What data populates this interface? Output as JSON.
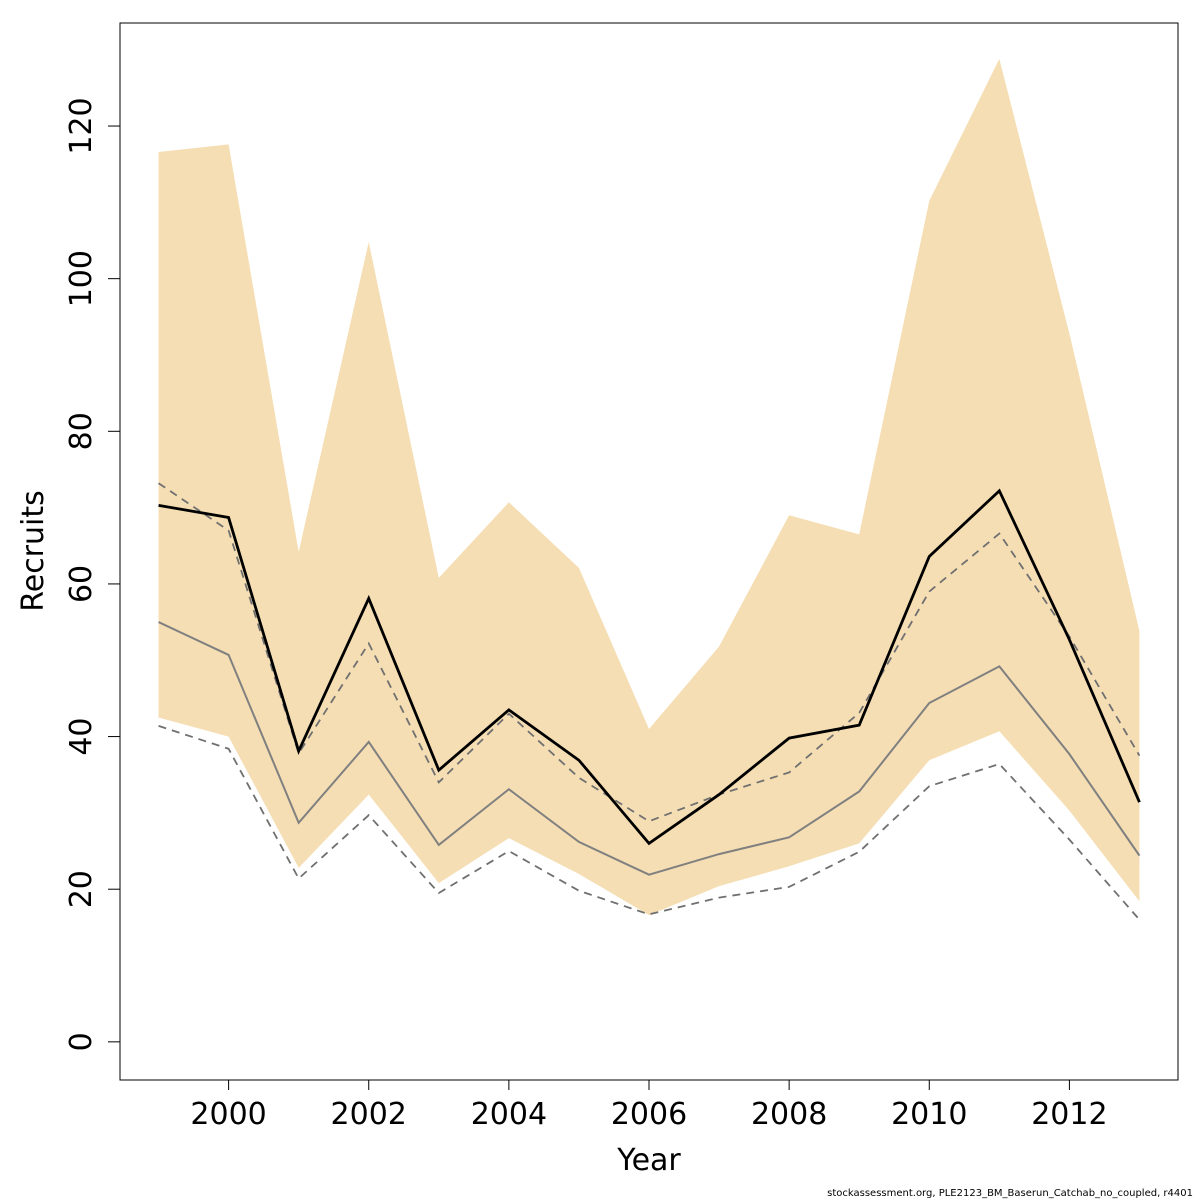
{
  "chart_data": {
    "type": "area",
    "xlabel": "Year",
    "ylabel": "Recruits",
    "xlim": [
      1998.45,
      2013.55
    ],
    "ylim": [
      -5,
      133.5
    ],
    "x_ticks": [
      2000,
      2002,
      2004,
      2006,
      2008,
      2010,
      2012
    ],
    "x_tick_labels": [
      "2000",
      "2002",
      "2004",
      "2006",
      "2008",
      "2010",
      "2012"
    ],
    "y_ticks": [
      0,
      20,
      40,
      60,
      80,
      100,
      120
    ],
    "y_tick_labels": [
      "0",
      "20",
      "40",
      "60",
      "80",
      "100",
      "120"
    ],
    "grid": false,
    "x": [
      1999,
      2000,
      2001,
      2002,
      2003,
      2004,
      2005,
      2006,
      2007,
      2008,
      2009,
      2010,
      2011,
      2012,
      2013
    ],
    "band": {
      "color": "#f5deb3",
      "lower": [
        42.5,
        40.0,
        22.8,
        32.4,
        20.8,
        26.7,
        22.0,
        16.6,
        20.4,
        23.0,
        26.0,
        36.9,
        40.7,
        30.3,
        18.4
      ],
      "upper": [
        116.6,
        117.6,
        64.2,
        104.8,
        60.8,
        70.7,
        62.1,
        41.0,
        51.8,
        69.0,
        66.5,
        110.2,
        128.8,
        92.8,
        53.8
      ]
    },
    "series": [
      {
        "style": "solid-black",
        "color": "#000000",
        "values": [
          70.3,
          68.7,
          38.1,
          58.1,
          35.6,
          43.5,
          36.9,
          26.0,
          32.4,
          39.8,
          41.5,
          63.6,
          72.2,
          52.7,
          31.4
        ]
      },
      {
        "style": "solid-grey",
        "color": "#808080",
        "values": [
          55.0,
          50.7,
          28.7,
          39.3,
          25.8,
          33.1,
          26.2,
          21.9,
          24.6,
          26.8,
          32.8,
          44.4,
          49.2,
          37.7,
          24.4
        ]
      },
      {
        "style": "dashed-grey-upper",
        "color": "#707070",
        "values": [
          73.2,
          67.0,
          37.8,
          52.2,
          34.0,
          43.0,
          34.6,
          28.9,
          32.4,
          35.3,
          43.1,
          59.0,
          66.6,
          53.1,
          37.5
        ]
      },
      {
        "style": "dashed-grey-lower",
        "color": "#707070",
        "values": [
          41.4,
          38.4,
          21.4,
          29.7,
          19.5,
          25.0,
          19.8,
          16.7,
          18.9,
          20.3,
          24.9,
          33.5,
          36.4,
          26.5,
          16.0
        ]
      }
    ],
    "annotation": "stockassessment.org, PLE2123_BM_Baserun_Catchab_no_coupled, r4401"
  }
}
